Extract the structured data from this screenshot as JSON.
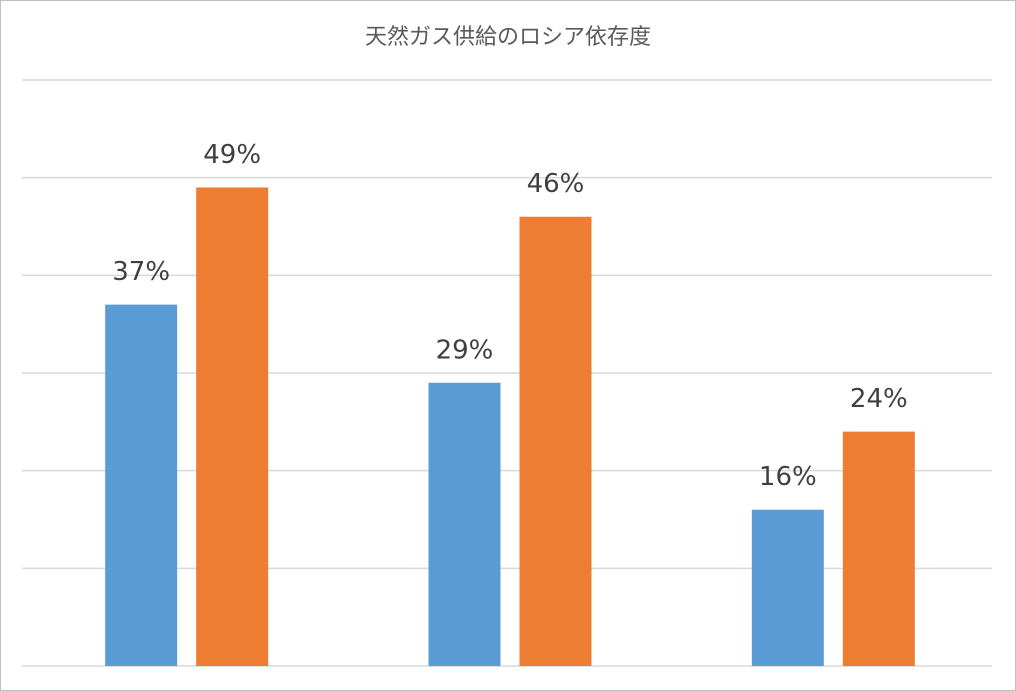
{
  "chart_data": {
    "type": "bar",
    "title": "天然ガス供給のロシア依存度",
    "categories": [
      null,
      null,
      null
    ],
    "series": [
      {
        "color": "#5b9bd5",
        "values": [
          37,
          29,
          16
        ],
        "value_labels": [
          "37%",
          "29%",
          "16%"
        ]
      },
      {
        "color": "#ed7d31",
        "values": [
          49,
          46,
          24
        ],
        "value_labels": [
          "49%",
          "46%",
          "24%"
        ]
      }
    ],
    "ylim": [
      0,
      60
    ],
    "yticks": [
      0,
      10,
      20,
      30,
      40,
      50,
      60
    ],
    "grid": true
  }
}
